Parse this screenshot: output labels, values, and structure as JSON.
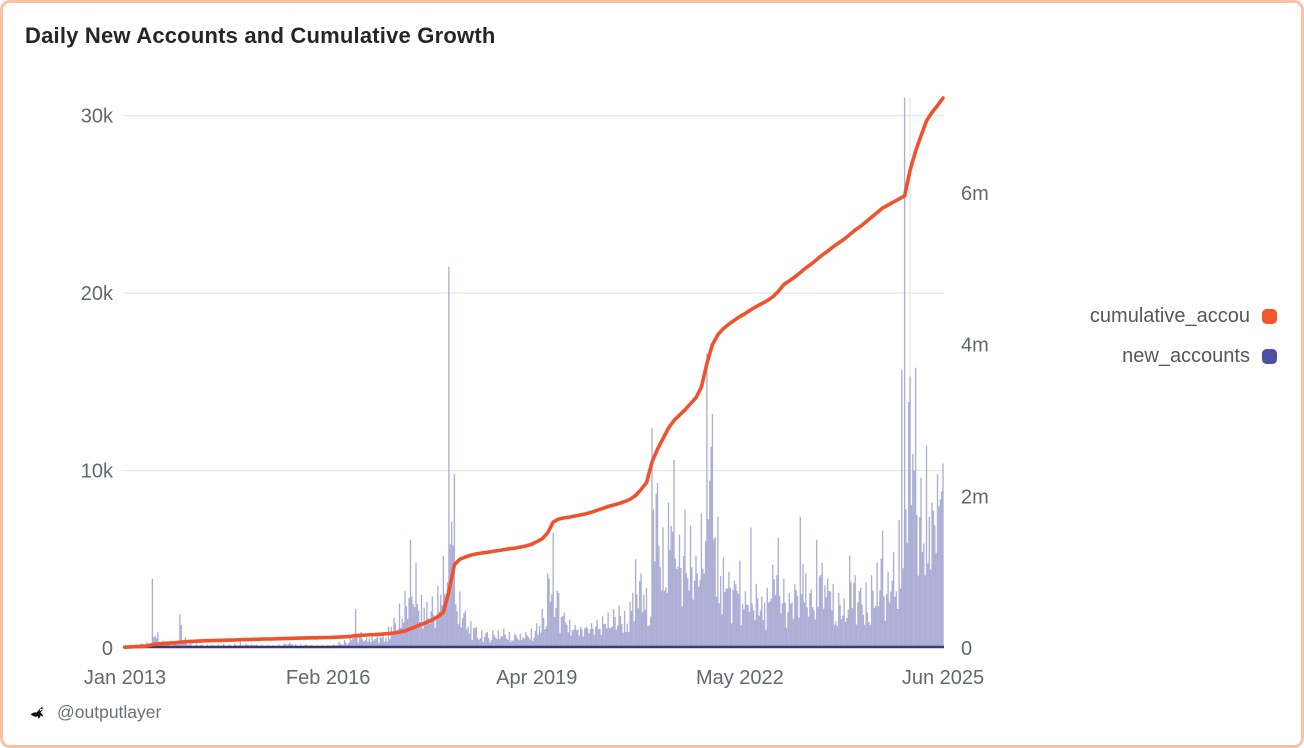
{
  "title": "Daily New Accounts and Cumulative Growth",
  "footer": {
    "handle": "@outputlayer",
    "icon": "bird-logo-icon"
  },
  "legend": [
    {
      "label": "cumulative_accou",
      "color": "#f4572f",
      "series": "cumulative_accounts"
    },
    {
      "label": "new_accounts",
      "color": "#4c51a4",
      "series": "new_accounts"
    }
  ],
  "colors": {
    "background": "#ffffff",
    "card_border": "#f7c3a8",
    "title_text": "#23272b",
    "axis_label_text": "#63676e",
    "legend_text": "#53575e",
    "footer_text": "#6a6f75",
    "gridline": "#e4e5e9",
    "axis_baseline": "#383a71",
    "bar_fill": "#a6a7d1",
    "line_stroke": "#f0522c"
  },
  "chart_data": {
    "type": "combo_bar_line_dual_axis",
    "title": "Daily New Accounts and Cumulative Growth",
    "x_start": "2013-01",
    "x_step_months": 1,
    "n_points": 150,
    "x_ticks": [
      {
        "label": "Jan 2013",
        "month": "2013-01"
      },
      {
        "label": "Feb 2016",
        "month": "2016-02"
      },
      {
        "label": "Apr 2019",
        "month": "2019-04"
      },
      {
        "label": "May 2022",
        "month": "2022-05"
      },
      {
        "label": "Jun 2025",
        "month": "2025-06"
      }
    ],
    "left_axis": {
      "max": 31000,
      "ticks": [
        {
          "label": "0",
          "value": 0
        },
        {
          "label": "10k",
          "value": 10000
        },
        {
          "label": "20k",
          "value": 20000
        },
        {
          "label": "30k",
          "value": 30000
        }
      ]
    },
    "right_axis": {
      "max": 7250000,
      "ticks": [
        {
          "label": "0",
          "value": 0
        },
        {
          "label": "2m",
          "value": 2000000
        },
        {
          "label": "4m",
          "value": 4000000
        },
        {
          "label": "6m",
          "value": 6000000
        }
      ]
    },
    "grid": {
      "horizontal": true,
      "vertical_line_month": "2024-12"
    },
    "series": [
      {
        "name": "new_accounts",
        "type": "bar",
        "axis": "left",
        "color": "#a6a7d1",
        "note": "daily new accounts, monthly peak-envelope samples read from chart",
        "values": [
          150,
          180,
          200,
          250,
          350,
          3900,
          900,
          400,
          300,
          350,
          1900,
          600,
          300,
          250,
          200,
          200,
          180,
          220,
          250,
          200,
          250,
          350,
          250,
          200,
          200,
          180,
          150,
          150,
          200,
          250,
          300,
          220,
          200,
          200,
          180,
          150,
          150,
          180,
          200,
          350,
          450,
          700,
          2200,
          900,
          600,
          650,
          700,
          800,
          1200,
          1700,
          2500,
          3200,
          6100,
          4800,
          3000,
          2600,
          2900,
          3500,
          5200,
          21500,
          9800,
          3200,
          2100,
          1500,
          1200,
          1000,
          900,
          1000,
          1000,
          1100,
          900,
          800,
          800,
          900,
          1100,
          1400,
          2200,
          4200,
          6500,
          3100,
          2000,
          1600,
          1300,
          1200,
          1200,
          1400,
          1600,
          1800,
          2000,
          2200,
          2400,
          2100,
          2600,
          5000,
          4200,
          3400,
          12400,
          9300,
          6800,
          8200,
          10600,
          6400,
          7800,
          6900,
          5200,
          7600,
          16600,
          13200,
          7400,
          5100,
          4300,
          3800,
          4900,
          3200,
          6800,
          3600,
          2900,
          3400,
          4700,
          6200,
          3900,
          3100,
          3600,
          7400,
          4200,
          3300,
          6100,
          4800,
          3900,
          3600,
          3100,
          2800,
          5200,
          4100,
          3400,
          3700,
          4100,
          4800,
          6600,
          4300,
          5400,
          7200,
          31000,
          15300,
          15800,
          9600,
          11400,
          8200,
          9800,
          10400
        ]
      },
      {
        "name": "cumulative_accounts",
        "type": "line",
        "axis": "right",
        "color": "#f0522c",
        "values": [
          10000,
          14000,
          18000,
          22000,
          27000,
          45000,
          55000,
          60000,
          64000,
          68000,
          77000,
          83000,
          87000,
          90000,
          93000,
          96000,
          98000,
          100000,
          102000,
          104000,
          106000,
          109000,
          111000,
          113000,
          115000,
          117000,
          118000,
          120000,
          122000,
          124000,
          127000,
          129000,
          131000,
          133000,
          134000,
          135000,
          137000,
          139000,
          141000,
          144000,
          148000,
          153000,
          162000,
          167000,
          171000,
          175000,
          179000,
          184000,
          190000,
          198000,
          210000,
          225000,
          255000,
          282000,
          312000,
          340000,
          372000,
          412000,
          470000,
          750000,
          1100000,
          1170000,
          1200000,
          1225000,
          1240000,
          1252000,
          1262000,
          1273000,
          1284000,
          1296000,
          1307000,
          1317000,
          1330000,
          1345000,
          1365000,
          1400000,
          1440000,
          1520000,
          1660000,
          1700000,
          1715000,
          1725000,
          1740000,
          1755000,
          1770000,
          1790000,
          1815000,
          1840000,
          1865000,
          1885000,
          1905000,
          1930000,
          1960000,
          2010000,
          2090000,
          2180000,
          2450000,
          2620000,
          2760000,
          2900000,
          3000000,
          3070000,
          3140000,
          3220000,
          3300000,
          3440000,
          3750000,
          4000000,
          4130000,
          4210000,
          4270000,
          4320000,
          4370000,
          4410000,
          4460000,
          4500000,
          4540000,
          4580000,
          4630000,
          4700000,
          4790000,
          4840000,
          4890000,
          4950000,
          5010000,
          5060000,
          5120000,
          5180000,
          5230000,
          5290000,
          5340000,
          5390000,
          5450000,
          5510000,
          5560000,
          5620000,
          5680000,
          5740000,
          5800000,
          5840000,
          5880000,
          5920000,
          5960000,
          6300000,
          6550000,
          6750000,
          6950000,
          7060000,
          7150000,
          7250000
        ]
      }
    ]
  }
}
